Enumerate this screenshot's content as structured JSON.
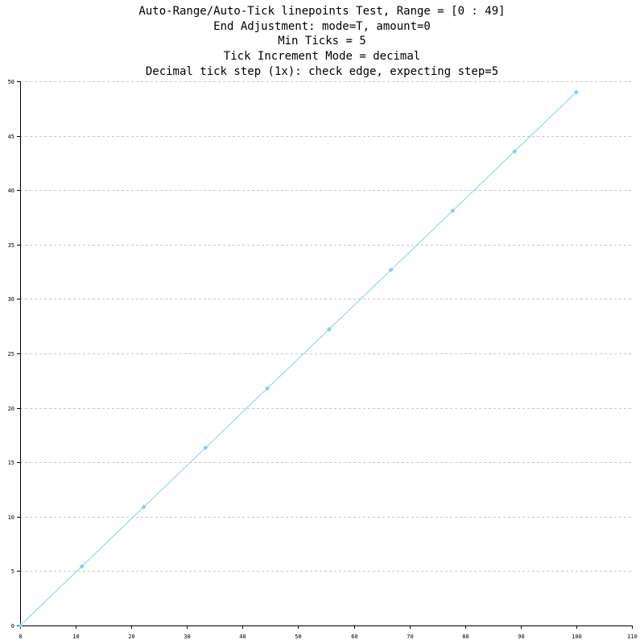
{
  "chart_data": {
    "type": "line",
    "title_lines": [
      "Auto-Range/Auto-Tick linepoints Test, Range = [0 : 49]",
      "End Adjustment: mode=T, amount=0",
      "Min Ticks = 5",
      "Tick Increment Mode = decimal",
      "Decimal tick step (1x): check edge, expecting step=5"
    ],
    "xlim": [
      0,
      110
    ],
    "ylim": [
      0,
      50
    ],
    "x_ticks": [
      0,
      10,
      20,
      30,
      40,
      50,
      60,
      70,
      80,
      90,
      100,
      110
    ],
    "y_ticks": [
      0,
      5,
      10,
      15,
      20,
      25,
      30,
      35,
      40,
      45,
      50
    ],
    "grid": "horizontal-dashed",
    "legend": "none",
    "line_color": "#87ceeb",
    "marker_color": "#87ceeb",
    "marker": "diamond",
    "series": [
      {
        "x": [
          0,
          11.11,
          22.22,
          33.33,
          44.44,
          55.56,
          66.67,
          77.78,
          88.89,
          100
        ],
        "y": [
          0,
          5.44,
          10.89,
          16.33,
          21.78,
          27.22,
          32.67,
          38.11,
          43.56,
          49
        ]
      }
    ]
  }
}
